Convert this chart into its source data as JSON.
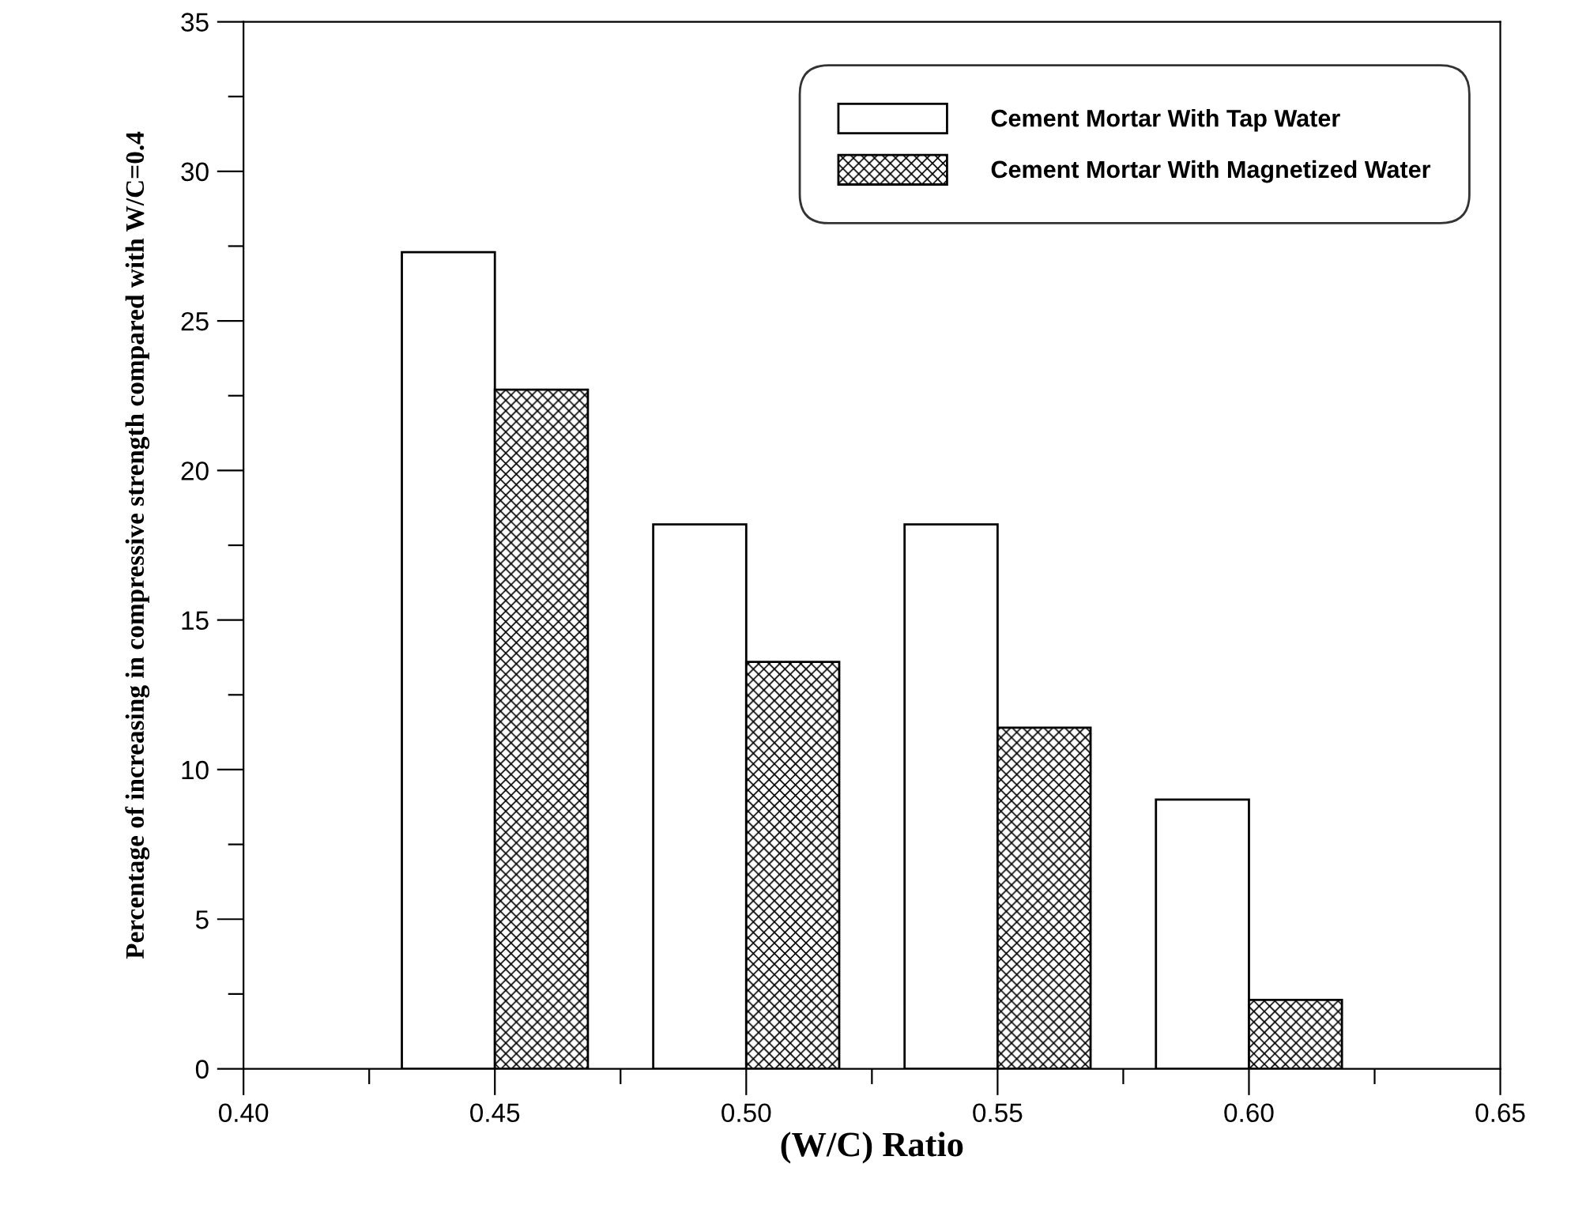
{
  "chart_data": {
    "type": "bar",
    "xlabel": "(W/C) Ratio",
    "ylabel": "Percentage of increasing in compressive strength compared with W/C=0.4",
    "x": [
      0.45,
      0.5,
      0.55,
      0.6
    ],
    "series": [
      {
        "name": "Cement Mortar With Tap Water",
        "color": "#ffffff",
        "values": [
          27.3,
          18.2,
          18.2,
          9.0
        ]
      },
      {
        "name": "Cement Mortar With Magnetized Water",
        "color": "#000000",
        "values": [
          22.7,
          13.6,
          11.4,
          2.3
        ]
      }
    ],
    "xlim": [
      0.4,
      0.65
    ],
    "xticks": [
      {
        "value": 0.4,
        "label": "0.40"
      },
      {
        "value": 0.425,
        "label": null
      },
      {
        "value": 0.45,
        "label": "0.45"
      },
      {
        "value": 0.475,
        "label": null
      },
      {
        "value": 0.5,
        "label": "0.50"
      },
      {
        "value": 0.525,
        "label": null
      },
      {
        "value": 0.55,
        "label": "0.55"
      },
      {
        "value": 0.575,
        "label": null
      },
      {
        "value": 0.6,
        "label": "0.60"
      },
      {
        "value": 0.625,
        "label": null
      },
      {
        "value": 0.65,
        "label": "0.65"
      }
    ],
    "ylim": [
      0,
      35
    ],
    "yticks": [
      0,
      {
        "value": 2.5,
        "label": null
      },
      5,
      {
        "value": 7.5,
        "label": null
      },
      10,
      {
        "value": 12.5,
        "label": null
      },
      15,
      {
        "value": 17.5,
        "label": null
      },
      20,
      {
        "value": 22.5,
        "label": null
      },
      25,
      {
        "value": 27.5,
        "label": null
      },
      30,
      {
        "value": 32.5,
        "label": null
      },
      35
    ],
    "grid": false,
    "legend": "top right"
  }
}
